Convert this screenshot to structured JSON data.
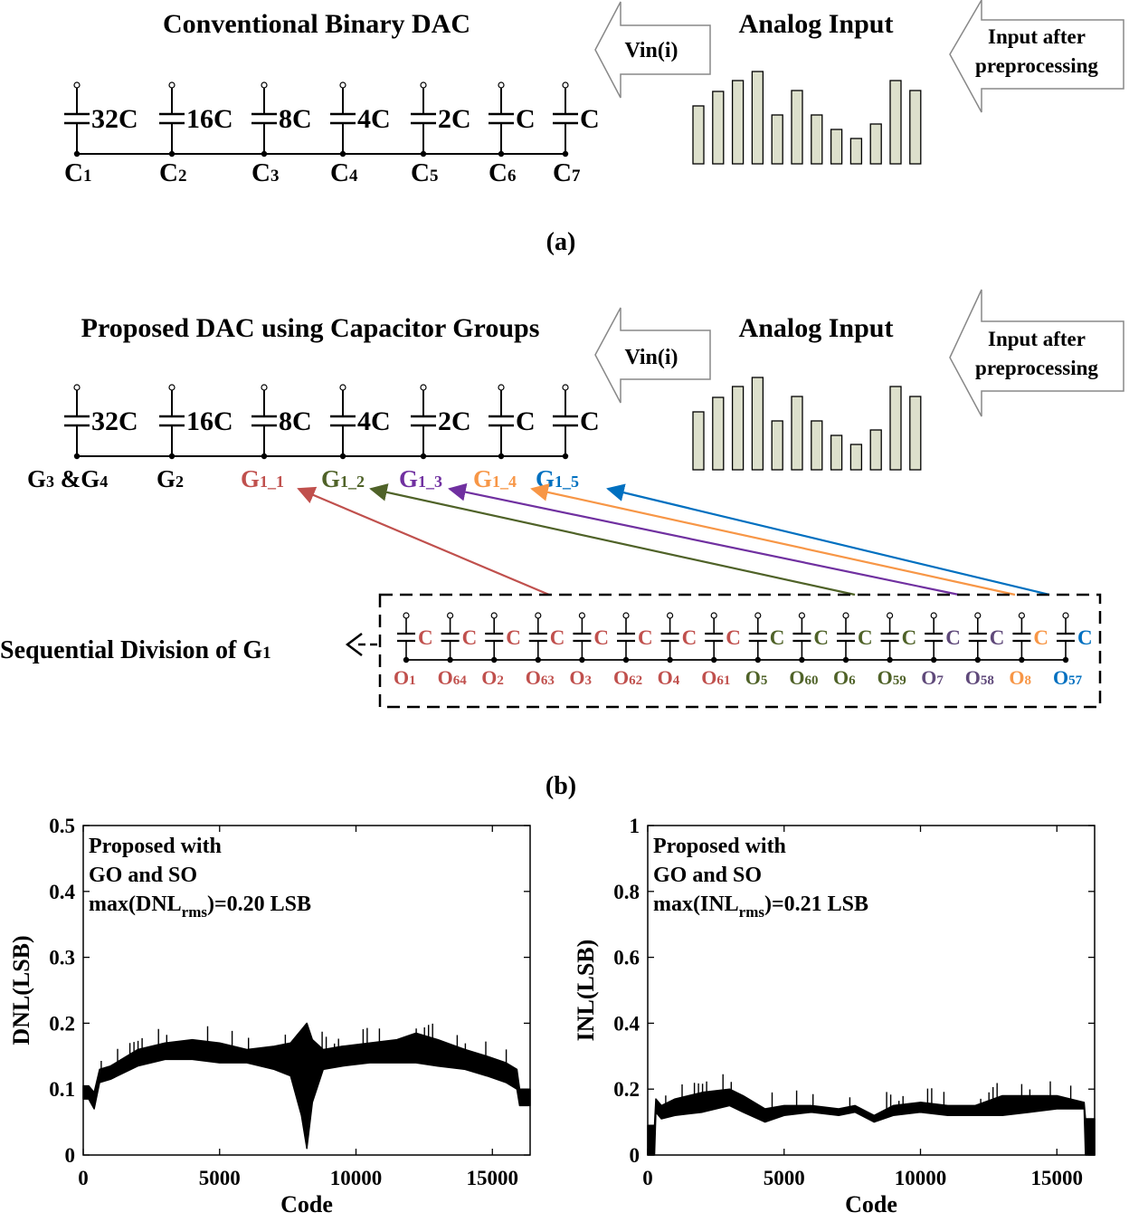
{
  "panel_a": {
    "title": "Conventional Binary DAC",
    "vin_label": "Vin(i)",
    "analog_input_title": "Analog Input",
    "preproc_line1": "Input after",
    "preproc_line2": "preprocessing",
    "caption": "(a)",
    "caps": [
      "32C",
      "16C",
      "8C",
      "4C",
      "2C",
      "C",
      "C"
    ],
    "nodes": [
      {
        "main": "C",
        "sub": "1"
      },
      {
        "main": "C",
        "sub": "2"
      },
      {
        "main": "C",
        "sub": "3"
      },
      {
        "main": "C",
        "sub": "4"
      },
      {
        "main": "C",
        "sub": "5"
      },
      {
        "main": "C",
        "sub": "6"
      },
      {
        "main": "C",
        "sub": "7"
      }
    ]
  },
  "panel_b": {
    "title": "Proposed DAC using Capacitor Groups",
    "vin_label": "Vin(i)",
    "analog_input_title": "Analog Input",
    "preproc_line1": "Input after",
    "preproc_line2": "preprocessing",
    "caption": "(b)",
    "caps": [
      "32C",
      "16C",
      "8C",
      "4C",
      "2C",
      "C",
      "C"
    ],
    "groups": [
      {
        "main": "G",
        "sub": "3",
        "suffix": " &G",
        "sub2": "4"
      },
      {
        "main": "G",
        "sub": "2"
      },
      {
        "main": "G",
        "sub": "1_1"
      },
      {
        "main": "G",
        "sub": "1_2"
      },
      {
        "main": "G",
        "sub": "1_3"
      },
      {
        "main": "G",
        "sub": "1_4"
      },
      {
        "main": "G",
        "sub": "1_5"
      }
    ],
    "division_label_main": "Sequential Division of G",
    "division_label_sub": "1",
    "unit_cap_label": "C",
    "unit_nodes": [
      {
        "main": "O",
        "sub": "1"
      },
      {
        "main": "O",
        "sub": "64"
      },
      {
        "main": "O",
        "sub": "2"
      },
      {
        "main": "O",
        "sub": "63"
      },
      {
        "main": "O",
        "sub": "3"
      },
      {
        "main": "O",
        "sub": "62"
      },
      {
        "main": "O",
        "sub": "4"
      },
      {
        "main": "O",
        "sub": "61"
      },
      {
        "main": "O",
        "sub": "5"
      },
      {
        "main": "O",
        "sub": "60"
      },
      {
        "main": "O",
        "sub": "6"
      },
      {
        "main": "O",
        "sub": "59"
      },
      {
        "main": "O",
        "sub": "7"
      },
      {
        "main": "O",
        "sub": "58"
      },
      {
        "main": "O",
        "sub": "8"
      },
      {
        "main": "O",
        "sub": "57"
      }
    ]
  },
  "analog_input_bars": [
    64,
    80,
    92,
    102,
    54,
    81,
    54,
    38,
    28,
    44,
    92,
    81
  ],
  "colors": {
    "g11": "#c0504d",
    "g12": "#4f6228",
    "g13": "#7030a0",
    "g14": "#f79646",
    "g15": "#0070c0",
    "o7": "#5f497a",
    "bar_fill": "#dde0cc"
  },
  "chart_data": [
    {
      "type": "line",
      "ylabel": "DNL(LSB)",
      "xlabel": "Code",
      "xlim": [
        0,
        16384
      ],
      "ylim": [
        0,
        0.5
      ],
      "xticks": [
        "0",
        "5000",
        "10000",
        "15000"
      ],
      "yticks": [
        "0",
        "0.1",
        "0.2",
        "0.3",
        "0.4",
        "0.5"
      ],
      "annotation_line1": "Proposed with",
      "annotation_line2": "GO and SO",
      "annotation_line3_prefix": "max(DNL",
      "annotation_line3_sub": "rms",
      "annotation_line3_suffix": ")=0.20 LSB",
      "envelope": {
        "x": [
          0,
          200,
          400,
          600,
          1000,
          2000,
          3000,
          4000,
          5000,
          6000,
          7000,
          7600,
          8000,
          8200,
          8400,
          8800,
          9500,
          10500,
          11500,
          12200,
          13000,
          14000,
          14800,
          15500,
          15900,
          16000,
          16384
        ],
        "upper": [
          0.105,
          0.105,
          0.095,
          0.13,
          0.135,
          0.16,
          0.17,
          0.175,
          0.17,
          0.16,
          0.165,
          0.17,
          0.19,
          0.2,
          0.175,
          0.16,
          0.165,
          0.17,
          0.175,
          0.185,
          0.175,
          0.16,
          0.15,
          0.14,
          0.13,
          0.1,
          0.1
        ],
        "lower": [
          0.085,
          0.085,
          0.07,
          0.11,
          0.115,
          0.135,
          0.145,
          0.145,
          0.14,
          0.14,
          0.13,
          0.12,
          0.06,
          0.01,
          0.08,
          0.13,
          0.135,
          0.14,
          0.14,
          0.14,
          0.135,
          0.13,
          0.12,
          0.11,
          0.1,
          0.075,
          0.075
        ]
      }
    },
    {
      "type": "line",
      "ylabel": "INL(LSB)",
      "xlabel": "Code",
      "xlim": [
        0,
        16384
      ],
      "ylim": [
        0,
        1
      ],
      "xticks": [
        "0",
        "5000",
        "10000",
        "15000"
      ],
      "yticks": [
        "0",
        "0.2",
        "0.4",
        "0.6",
        "0.8",
        "1"
      ],
      "annotation_line1": "Proposed with",
      "annotation_line2": "GO and SO",
      "annotation_line3_prefix": "max(INL",
      "annotation_line3_sub": "rms",
      "annotation_line3_suffix": ")=0.21 LSB",
      "envelope": {
        "x": [
          0,
          250,
          300,
          500,
          1000,
          2000,
          3000,
          3500,
          4300,
          5000,
          6000,
          7000,
          7600,
          8300,
          9000,
          10000,
          11000,
          12000,
          13000,
          14000,
          15000,
          16000,
          16050,
          16384
        ],
        "upper": [
          0.09,
          0.09,
          0.17,
          0.15,
          0.17,
          0.19,
          0.2,
          0.18,
          0.14,
          0.15,
          0.15,
          0.14,
          0.15,
          0.12,
          0.15,
          0.16,
          0.15,
          0.15,
          0.18,
          0.18,
          0.18,
          0.16,
          0.11,
          0.11
        ],
        "lower": [
          0.0,
          0.0,
          0.13,
          0.11,
          0.12,
          0.13,
          0.15,
          0.13,
          0.1,
          0.12,
          0.13,
          0.12,
          0.13,
          0.1,
          0.12,
          0.13,
          0.12,
          0.12,
          0.12,
          0.13,
          0.14,
          0.14,
          0.0,
          0.0
        ]
      }
    }
  ]
}
